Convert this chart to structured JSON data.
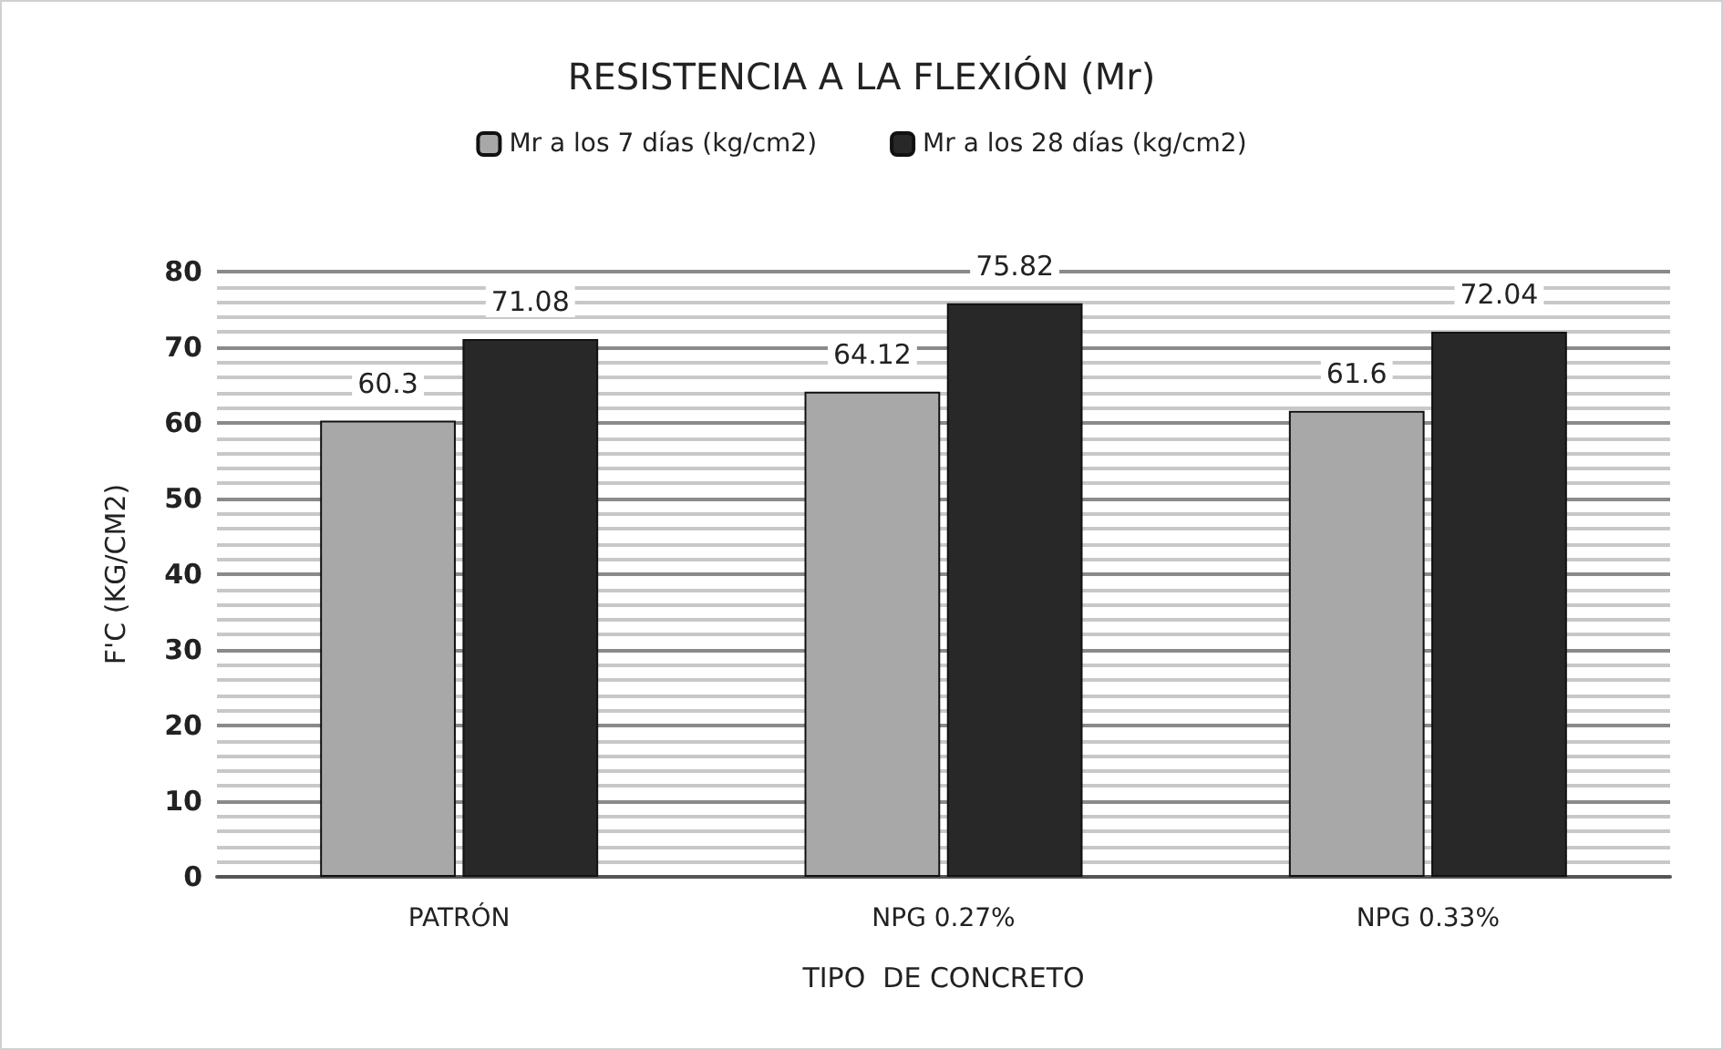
{
  "chart_data": {
    "type": "bar",
    "title": "RESISTENCIA A LA FLEXIÓN (Mr)",
    "xlabel": "TIPO  DE CONCRETO",
    "ylabel": "F'C (KG/CM2)",
    "categories": [
      "PATRÓN",
      "NPG 0.27%",
      "NPG 0.33%"
    ],
    "series": [
      {
        "name": "Mr a los 7 días (kg/cm2)",
        "color": "#a8a8a8",
        "values": [
          60.3,
          64.12,
          61.6
        ]
      },
      {
        "name": "Mr a los 28 días (kg/cm2)",
        "color": "#282828",
        "values": [
          71.08,
          75.82,
          72.04
        ]
      }
    ],
    "ylim": [
      0,
      80
    ],
    "yticks": [
      0,
      10,
      20,
      30,
      40,
      50,
      60,
      70,
      80
    ],
    "grid": "y",
    "legend": "top",
    "data_labels": true
  }
}
